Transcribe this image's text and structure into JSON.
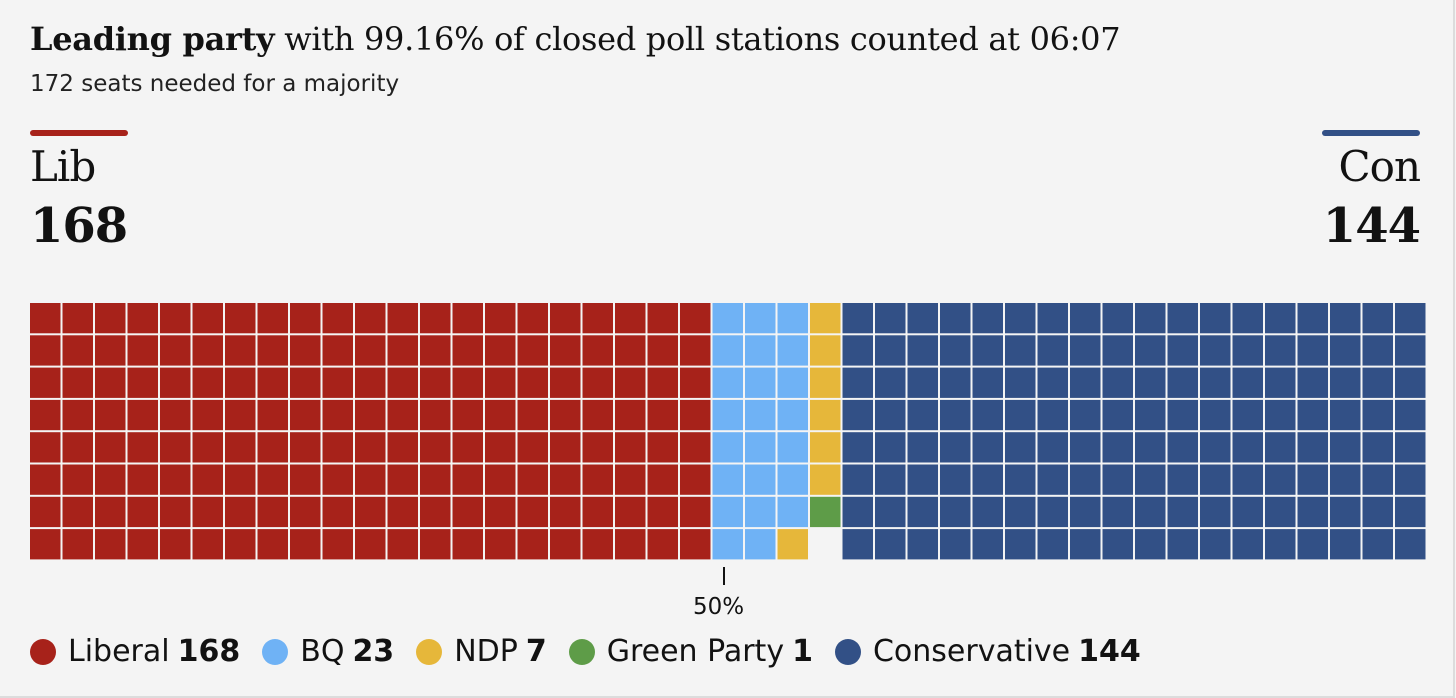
{
  "headline": {
    "lead": "Leading party",
    "rest": " with 99.16% of closed poll stations counted at 06:07"
  },
  "subline": "172 seats needed for a majority",
  "left_party": {
    "abbr": "Lib",
    "seats": "168",
    "color": "#a7221a"
  },
  "right_party": {
    "abbr": "Con",
    "seats": "144",
    "color": "#325086"
  },
  "midpoint_label": "50%",
  "chart_data": {
    "type": "waffle",
    "rows": 8,
    "fill_order": "column-major from each end",
    "series": [
      {
        "name": "Liberal",
        "value": 168,
        "color": "#a7221a",
        "side": "left"
      },
      {
        "name": "BQ",
        "value": 23,
        "color": "#6fb2f5",
        "side": "left"
      },
      {
        "name": "NDP",
        "value": 7,
        "color": "#e6b73a",
        "side": "left"
      },
      {
        "name": "Green Party",
        "value": 1,
        "color": "#5e9c48",
        "side": "left"
      },
      {
        "name": "Conservative",
        "value": 144,
        "color": "#325086",
        "side": "right"
      }
    ],
    "empty_seats": 0
  },
  "legend": [
    {
      "label": "Liberal",
      "value": "168",
      "color": "#a7221a"
    },
    {
      "label": "BQ",
      "value": "23",
      "color": "#6fb2f5"
    },
    {
      "label": "NDP",
      "value": "7",
      "color": "#e6b73a"
    },
    {
      "label": "Green Party",
      "value": "1",
      "color": "#5e9c48"
    },
    {
      "label": "Conservative",
      "value": "144",
      "color": "#325086"
    }
  ]
}
